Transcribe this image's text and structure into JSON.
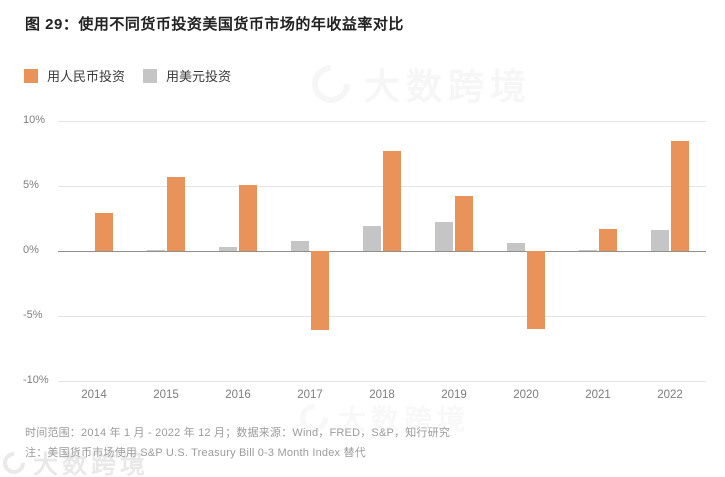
{
  "title": "图 29：使用不同货币投资美国货币市场的年收益率对比",
  "legend": [
    {
      "label": "用人民币投资",
      "color": "#E9925A"
    },
    {
      "label": "用美元投资",
      "color": "#C5C5C5"
    }
  ],
  "chart_data": {
    "type": "bar",
    "title": "使用不同货币投资美国货币市场的年收益率对比",
    "categories": [
      "2014",
      "2015",
      "2016",
      "2017",
      "2018",
      "2019",
      "2020",
      "2021",
      "2022"
    ],
    "series": [
      {
        "name": "用人民币投资",
        "color": "#E9925A",
        "values": [
          2.9,
          5.7,
          5.1,
          -6.1,
          7.7,
          4.2,
          -6.0,
          1.7,
          8.5
        ]
      },
      {
        "name": "用美元投资",
        "color": "#C5C5C5",
        "values": [
          0.0,
          0.1,
          0.3,
          0.8,
          1.9,
          2.2,
          0.6,
          0.1,
          1.6
        ]
      }
    ],
    "xlabel": "",
    "ylabel": "",
    "ylim": [
      -10,
      10
    ],
    "yticks": [
      {
        "label": "10%",
        "value": 10
      },
      {
        "label": "5%",
        "value": 5
      },
      {
        "label": "0%",
        "value": 0
      },
      {
        "label": "-5%",
        "value": -5
      },
      {
        "label": "-10%",
        "value": -10
      }
    ],
    "grid": true,
    "legend_position": "top-left",
    "bar_layout": "grouped, USD bar left of RMB bar in each year group"
  },
  "footer": {
    "line1": "时间范围：2014 年 1 月 - 2022 年 12 月；数据来源：Wind，FRED，S&P，知行研究",
    "line2": "注：美国货币市场使用 S&P U.S. Treasury Bill 0-3 Month Index 替代"
  },
  "watermark": {
    "text": "大数跨境"
  }
}
